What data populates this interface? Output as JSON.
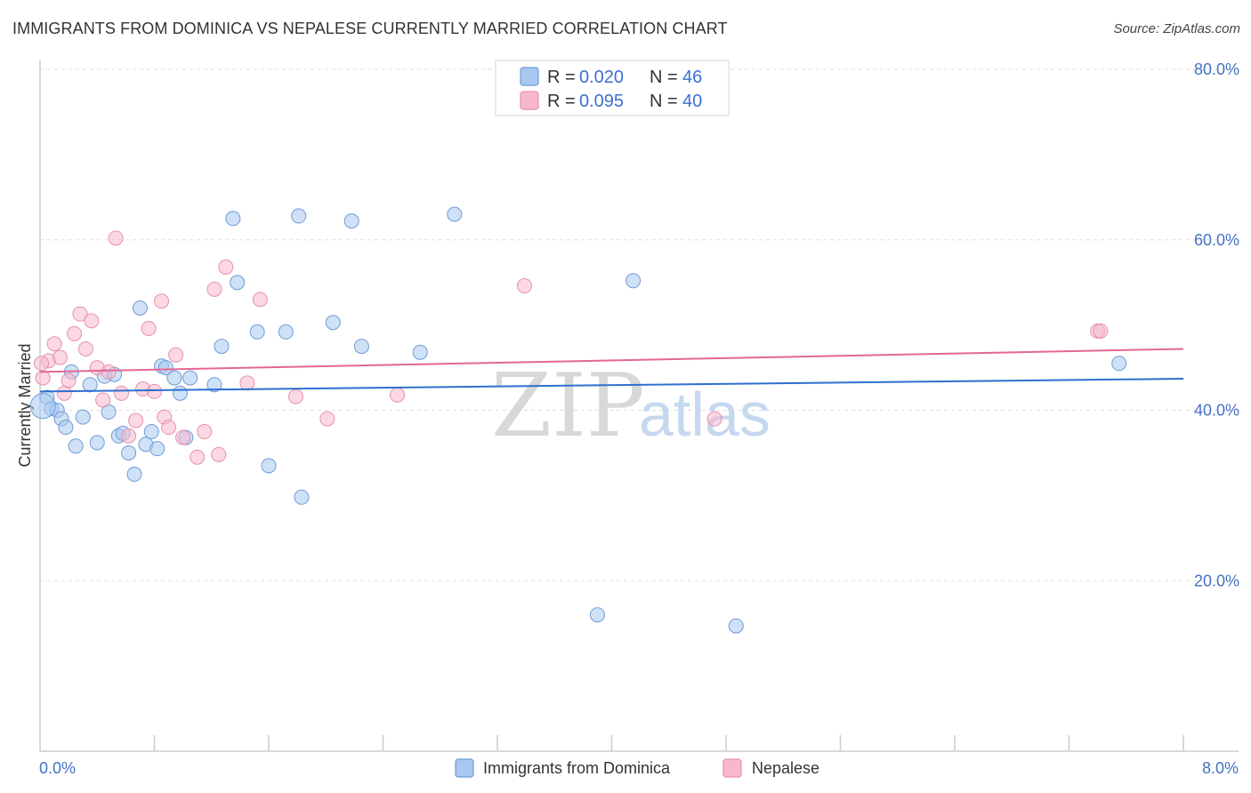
{
  "title": "IMMIGRANTS FROM DOMINICA VS NEPALESE CURRENTLY MARRIED CORRELATION CHART",
  "source": "Source: ZipAtlas.com",
  "watermark": {
    "zip": "ZIP",
    "atlas": "atlas"
  },
  "chart_data": {
    "type": "scatter",
    "ylabel": "Currently Married",
    "xlim": [
      0,
      8
    ],
    "ylim": [
      0,
      80
    ],
    "x_tick_labels": {
      "left": "0.0%",
      "right": "8.0%"
    },
    "y_ticks": [
      {
        "value": 20,
        "label": "20.0%"
      },
      {
        "value": 40,
        "label": "40.0%"
      },
      {
        "value": 60,
        "label": "60.0%"
      },
      {
        "value": 80,
        "label": "80.0%"
      }
    ],
    "legend": [
      {
        "r_label": "R = ",
        "r_value": "0.020",
        "n_label": "N = ",
        "n_value": "46",
        "color": "#a8c8f0"
      },
      {
        "r_label": "R = ",
        "r_value": "0.095",
        "n_label": "N = ",
        "n_value": "40",
        "color": "#f7b8ce"
      }
    ],
    "series": [
      {
        "name": "Immigrants from Dominica",
        "fill": "#a8c8f0",
        "stroke": "#6f9bd6",
        "line_color": "#2e6fd0",
        "trend": {
          "y_at_x0": 42.2,
          "y_at_x8": 43.7
        },
        "points": [
          [
            0.05,
            41.5
          ],
          [
            0.08,
            40.2
          ],
          [
            0.12,
            40.0
          ],
          [
            0.15,
            39.0
          ],
          [
            0.18,
            38.0
          ],
          [
            0.22,
            44.5
          ],
          [
            0.25,
            35.8
          ],
          [
            0.3,
            39.2
          ],
          [
            0.35,
            43.0
          ],
          [
            0.4,
            36.2
          ],
          [
            0.45,
            44.0
          ],
          [
            0.48,
            39.8
          ],
          [
            0.52,
            44.2
          ],
          [
            0.55,
            37.0
          ],
          [
            0.58,
            37.3
          ],
          [
            0.62,
            35.0
          ],
          [
            0.66,
            32.5
          ],
          [
            0.7,
            52.0
          ],
          [
            0.74,
            36.0
          ],
          [
            0.78,
            37.5
          ],
          [
            0.82,
            35.5
          ],
          [
            0.85,
            45.2
          ],
          [
            0.88,
            45.0
          ],
          [
            0.94,
            43.8
          ],
          [
            0.98,
            42.0
          ],
          [
            1.02,
            36.8
          ],
          [
            1.05,
            43.8
          ],
          [
            1.22,
            43.0
          ],
          [
            1.27,
            47.5
          ],
          [
            1.35,
            62.5
          ],
          [
            1.38,
            55.0
          ],
          [
            1.52,
            49.2
          ],
          [
            1.6,
            33.5
          ],
          [
            1.72,
            49.2
          ],
          [
            1.81,
            62.8
          ],
          [
            1.83,
            29.8
          ],
          [
            2.05,
            50.3
          ],
          [
            2.18,
            62.2
          ],
          [
            2.25,
            47.5
          ],
          [
            2.66,
            46.8
          ],
          [
            2.9,
            63.0
          ],
          [
            3.9,
            16.0
          ],
          [
            4.15,
            55.2
          ],
          [
            4.87,
            14.7
          ],
          [
            7.55,
            45.5
          ],
          [
            0.02,
            40.5
          ]
        ]
      },
      {
        "name": "Nepalese",
        "fill": "#f7b8ce",
        "stroke": "#e690ae",
        "line_color": "#e46792",
        "trend": {
          "y_at_x0": 44.5,
          "y_at_x8": 47.2
        },
        "points": [
          [
            0.02,
            43.8
          ],
          [
            0.06,
            45.8
          ],
          [
            0.1,
            47.8
          ],
          [
            0.14,
            46.2
          ],
          [
            0.17,
            42.0
          ],
          [
            0.2,
            43.5
          ],
          [
            0.24,
            49.0
          ],
          [
            0.28,
            51.3
          ],
          [
            0.32,
            47.2
          ],
          [
            0.36,
            50.5
          ],
          [
            0.4,
            45.0
          ],
          [
            0.44,
            41.2
          ],
          [
            0.48,
            44.5
          ],
          [
            0.53,
            60.2
          ],
          [
            0.57,
            42.0
          ],
          [
            0.62,
            37.0
          ],
          [
            0.67,
            38.8
          ],
          [
            0.72,
            42.5
          ],
          [
            0.76,
            49.6
          ],
          [
            0.8,
            42.2
          ],
          [
            0.85,
            52.8
          ],
          [
            0.87,
            39.2
          ],
          [
            0.9,
            38.0
          ],
          [
            0.95,
            46.5
          ],
          [
            1.0,
            36.8
          ],
          [
            1.1,
            34.5
          ],
          [
            1.15,
            37.5
          ],
          [
            1.22,
            54.2
          ],
          [
            1.25,
            34.8
          ],
          [
            1.3,
            56.8
          ],
          [
            1.45,
            43.2
          ],
          [
            1.54,
            53.0
          ],
          [
            1.79,
            41.6
          ],
          [
            2.01,
            39.0
          ],
          [
            2.5,
            41.8
          ],
          [
            3.39,
            54.6
          ],
          [
            4.72,
            39.0
          ],
          [
            7.4,
            49.3
          ],
          [
            7.42,
            49.3
          ],
          [
            0.01,
            45.5
          ]
        ]
      }
    ]
  }
}
